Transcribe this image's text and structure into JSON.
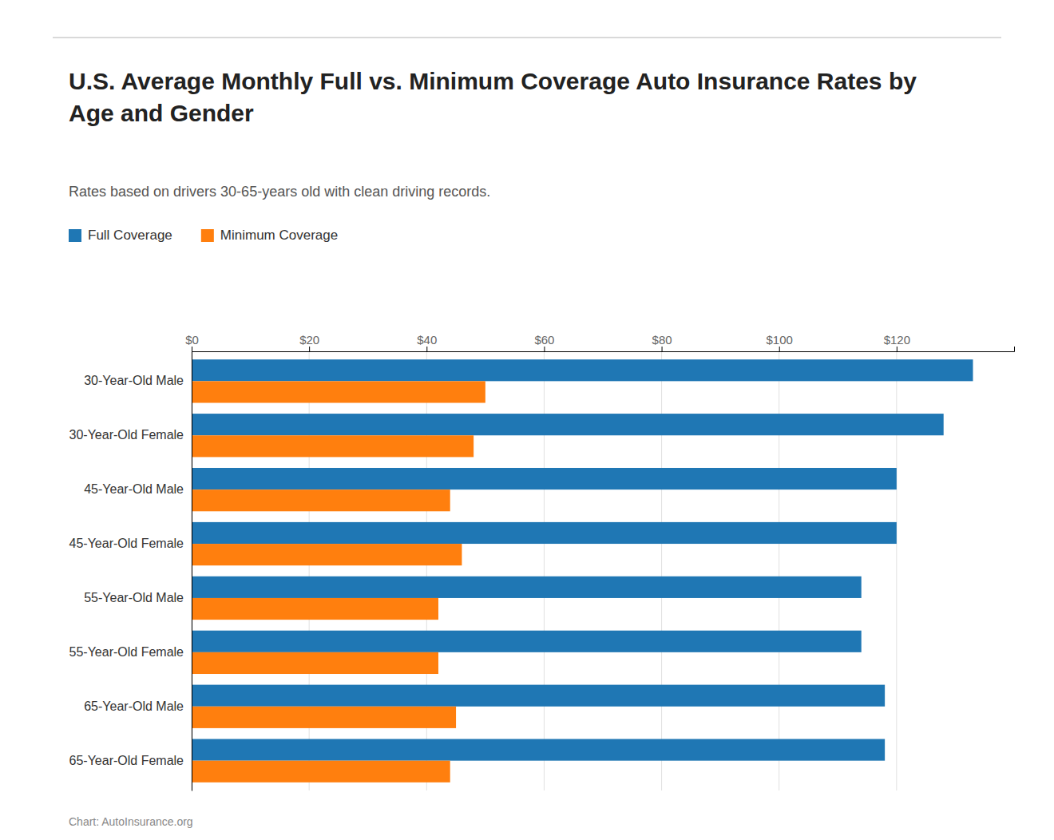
{
  "chart_data": {
    "type": "bar",
    "orientation": "horizontal",
    "title": "U.S. Average Monthly Full vs. Minimum Coverage Auto Insurance Rates by\nAge and Gender",
    "subtitle": "Rates based on drivers 30-65-years old with clean driving records.",
    "annotations": [
      "Chart: AutoInsurance.org"
    ],
    "categories": [
      "30-Year-Old Male",
      "30-Year-Old Female",
      "45-Year-Old Male",
      "45-Year-Old Female",
      "55-Year-Old Male",
      "55-Year-Old Female",
      "65-Year-Old Male",
      "65-Year-Old Female"
    ],
    "series": [
      {
        "name": "Full Coverage",
        "values": [
          133,
          128,
          120,
          120,
          114,
          114,
          118,
          118
        ]
      },
      {
        "name": "Minimum Coverage",
        "values": [
          50,
          48,
          44,
          46,
          42,
          42,
          45,
          44
        ]
      }
    ],
    "xlim": [
      0,
      140
    ],
    "xticks": [
      {
        "value": 0,
        "label": "$0"
      },
      {
        "value": 20,
        "label": "$20"
      },
      {
        "value": 40,
        "label": "$40"
      },
      {
        "value": 60,
        "label": "$60"
      },
      {
        "value": 80,
        "label": "$80"
      },
      {
        "value": 100,
        "label": "$100"
      },
      {
        "value": 120,
        "label": "$120"
      }
    ],
    "grid": true,
    "legend": "top"
  }
}
